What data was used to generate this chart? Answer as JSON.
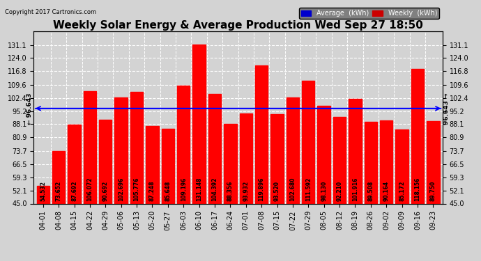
{
  "title": "Weekly Solar Energy & Average Production Wed Sep 27 18:50",
  "copyright": "Copyright 2017 Cartronics.com",
  "categories": [
    "04-01",
    "04-08",
    "04-15",
    "04-22",
    "04-29",
    "05-06",
    "05-13",
    "05-20",
    "05-27",
    "06-03",
    "06-10",
    "06-17",
    "06-24",
    "07-01",
    "07-08",
    "07-15",
    "07-22",
    "07-29",
    "08-05",
    "08-12",
    "08-19",
    "08-26",
    "09-02",
    "09-09",
    "09-16",
    "09-23"
  ],
  "values": [
    54.532,
    73.652,
    87.692,
    106.072,
    90.692,
    102.696,
    105.776,
    87.248,
    85.648,
    109.196,
    131.148,
    104.392,
    88.356,
    93.932,
    119.896,
    93.52,
    102.68,
    111.592,
    98.13,
    92.21,
    101.916,
    89.508,
    90.164,
    85.172,
    118.156,
    89.75
  ],
  "average": 96.643,
  "ylim": [
    45.0,
    138.5
  ],
  "yticks": [
    45.0,
    52.1,
    59.3,
    66.5,
    73.7,
    80.9,
    88.1,
    95.2,
    102.4,
    109.6,
    116.8,
    124.0,
    131.1
  ],
  "bar_color": "#FF0000",
  "avg_line_color": "#0000FF",
  "background_color": "#D3D3D3",
  "grid_color": "white",
  "title_fontsize": 11,
  "copyright_fontsize": 6,
  "tick_fontsize": 7,
  "value_fontsize": 5.5,
  "avg_annotation_fontsize": 6.5,
  "legend_avg_color": "#0000CC",
  "legend_weekly_color": "#CC0000",
  "legend_fontsize": 7
}
